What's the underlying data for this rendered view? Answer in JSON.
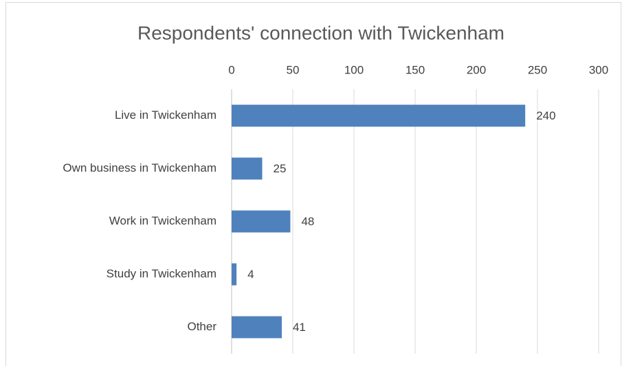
{
  "chart_data": {
    "type": "bar",
    "orientation": "horizontal",
    "title": "Respondents' connection with Twickenham",
    "categories": [
      "Live in Twickenham",
      "Own business in Twickenham",
      "Work in Twickenham",
      "Study in Twickenham",
      "Other"
    ],
    "values": [
      240,
      25,
      48,
      4,
      41
    ],
    "color": "#4f81bd",
    "xlim": [
      0,
      300
    ],
    "xticks": [
      0,
      50,
      100,
      150,
      200,
      250,
      300
    ],
    "grid": true,
    "data_labels": true
  }
}
